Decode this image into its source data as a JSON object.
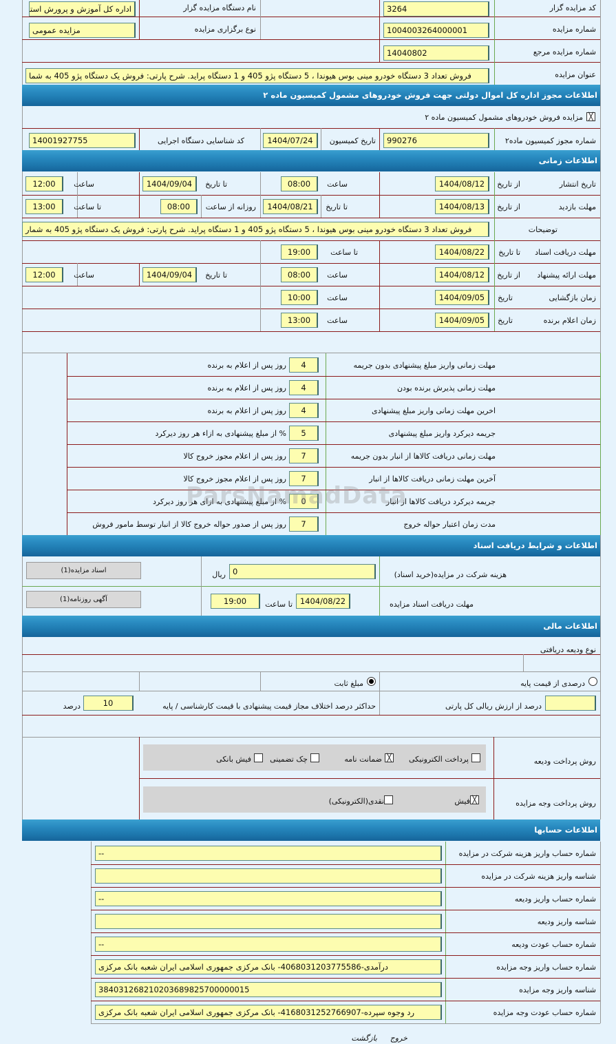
{
  "general": {
    "auctioneer_code_label": "کد مزایده گزار",
    "auctioneer_code": "3264",
    "auctioneer_name_label": "نام دستگاه مزایده گزار",
    "auctioneer_name": "اداره کل آموزش و پرورش استا",
    "auction_no_label": "شماره مزایده",
    "auction_no": "1004003264000001",
    "holding_type_label": "نوع برگزاری مزایده",
    "holding_type": "مزایده عمومی",
    "ref_no_label": "شماره مزایده مرجع",
    "ref_no": "14040802",
    "title_label": "عنوان مزایده",
    "title": "فروش تعداد 3 دستگاه خودرو مینی بوس هیوندا ، 5 دستگاه پژو 405 و 1 دستگاه پراید. شرح پارتی: فروش یک دستگاه پژو 405 به شما"
  },
  "license": {
    "header": "اطلاعات مجوز اداره کل اموال دولتی جهت فروش خودروهای مشمول کمیسیون ماده ۲",
    "checkbox_label": "مزایده فروش خودروهای مشمول کمیسیون ماده ۲",
    "checked": true,
    "permit_label": "شماره مجوز کمیسیون ماده۲",
    "permit": "990276",
    "commission_date_label": "تاریخ کمیسیون",
    "commission_date": "1404/07/24",
    "exec_code_label": "کد شناسایی دستگاه اجرایی",
    "exec_code": "14001927755"
  },
  "timing": {
    "header": "اطلاعات زمانی",
    "publish": {
      "label": "تاریخ انتشار",
      "from_label": "از تاریخ",
      "from": "1404/08/12",
      "time_label": "ساعت",
      "time": "08:00",
      "to_label": "تا تاریخ",
      "to": "1404/09/04",
      "time2_label": "ساعت",
      "time2": "12:00"
    },
    "visit": {
      "label": "مهلت بازدید",
      "from_label": "از تاریخ",
      "from": "1404/08/13",
      "to_label": "تا تاریخ",
      "to": "1404/08/21",
      "daily_label": "روزانه از ساعت",
      "daily_from": "08:00",
      "to_time_label": "تا ساعت",
      "to_time": "13:00"
    },
    "desc": {
      "label": "توضیحات",
      "value": "فروش تعداد 3 دستگاه خودرو مینی بوس هیوندا ، 5 دستگاه پژو 405 و 1 دستگاه پراید. شرح پارتی: فروش یک دستگاه پژو 405 به شمار"
    },
    "docs": {
      "label": "مهلت دریافت اسناد",
      "to_label": "تا تاریخ",
      "to": "1404/08/22",
      "time_label": "تا ساعت",
      "time": "19:00"
    },
    "offer": {
      "label": "مهلت ارائه پیشنهاد",
      "from_label": "از تاریخ",
      "from": "1404/08/12",
      "time_label": "ساعت",
      "time": "08:00",
      "to_label": "تا تاریخ",
      "to": "1404/09/04",
      "time2_label": "ساعت",
      "time2": "12:00"
    },
    "opening": {
      "label": "زمان بازگشایی",
      "date_label": "تاریخ",
      "date": "1404/09/05",
      "time_label": "ساعت",
      "time": "10:00"
    },
    "winner": {
      "label": "زمان اعلام برنده",
      "date_label": "تاریخ",
      "date": "1404/09/05",
      "time_label": "ساعت",
      "time": "13:00"
    }
  },
  "deadlines": [
    {
      "label": "مهلت زمانی واریز مبلغ پیشنهادی بدون جریمه",
      "value": "4",
      "unit": "روز پس از اعلام به برنده"
    },
    {
      "label": "مهلت زمانی پذیرش برنده بودن",
      "value": "4",
      "unit": "روز پس از اعلام به برنده"
    },
    {
      "label": "اخرین مهلت زمانی واریز مبلغ پیشنهادی",
      "value": "4",
      "unit": "روز پس از اعلام به برنده"
    },
    {
      "label": "جریمه دیرکرد واریز مبلغ پیشنهادی",
      "value": "5",
      "unit": "% از مبلغ پیشنهادی به ازاء هر روز دیرکرد"
    },
    {
      "label": "مهلت زمانی دریافت کالاها از انبار بدون جریمه",
      "value": "7",
      "unit": "روز پس از اعلام مجوز خروج کالا"
    },
    {
      "label": "آخرین مهلت زمانی دریافت کالاها از انبار",
      "value": "7",
      "unit": "روز پس از اعلام مجوز خروج کالا"
    },
    {
      "label": "جریمه دیرکرد دریافت کالاها از انبار",
      "value": "0",
      "unit": "% از مبلغ پیشنهادی به ازای هر روز دیرکرد"
    },
    {
      "label": "مدت زمان اعتبار حواله خروج",
      "value": "7",
      "unit": "روز پس از صدور حواله خروج کالا از انبار توسط مامور فروش"
    }
  ],
  "documents": {
    "header": "اطلاعات و شرایط دریافت اسناد",
    "fee_label": "هزینه شرکت در مزایده(خرید اسناد)",
    "fee": "0",
    "fee_unit": "ریال",
    "docs_button": "اسناد مزایده(1)",
    "deadline_label": "مهلت دریافت اسناد مزایده",
    "to_date_label": "تا تاریخ",
    "to_date": "1404/08/22",
    "to_time_label": "تا ساعت",
    "to_time": "19:00",
    "ad_button": "آگهی روزنامه(1)"
  },
  "financial": {
    "header": "اطلاعات مالی",
    "deposit_type_label": "نوع ودیعه دریافتی",
    "radio_percent": "درصدی از قیمت پایه",
    "radio_fixed": "مبلغ ثابت",
    "selected": "fixed",
    "percent_value": "",
    "percent_label": "درصد از ارزش ریالی کل پارتی",
    "max_diff_label": "حداکثر درصد اختلاف مجاز قیمت پیشنهادی با قیمت کارشناسی / پایه",
    "max_diff": "10",
    "max_diff_unit": "درصد"
  },
  "payment": {
    "deposit_label": "روش پرداخت ودیعه",
    "deposit_options": [
      {
        "label": "پرداخت الکترونیکی",
        "checked": false
      },
      {
        "label": "ضمانت نامه",
        "checked": true
      },
      {
        "label": "چک تضمینی",
        "checked": false
      },
      {
        "label": "فیش بانکی",
        "checked": false
      }
    ],
    "auction_label": "روش پرداخت وجه مزایده",
    "auction_options": [
      {
        "label": "فیش",
        "checked": true
      },
      {
        "label": "نقدی(الکترونیکی)",
        "checked": false
      }
    ]
  },
  "accounts": {
    "header": "اطلاعات حسابها",
    "rows": [
      {
        "label": "شماره حساب واریز هزینه شرکت در مزایده",
        "value": "--"
      },
      {
        "label": "شناسه واریز هزینه شرکت در مزایده",
        "value": ""
      },
      {
        "label": "شماره حساب واریز ودیعه",
        "value": "--"
      },
      {
        "label": "شناسه واریز ودیعه",
        "value": ""
      },
      {
        "label": "شماره حساب عودت ودیعه",
        "value": "--"
      },
      {
        "label": "شماره حساب واریز وجه مزایده",
        "value": "درآمدی-4068031203775586- بانک مرکزی جمهوری اسلامی ایران شعبه بانک مرکزی"
      },
      {
        "label": "شناسه واریز وجه مزایده",
        "value": "384031268210203689825700000015"
      },
      {
        "label": "شماره حساب عودت وجه مزایده",
        "value": "رد وجوه سپرده-4168031252766907- بانک مرکزی جمهوری اسلامی ایران شعبه بانک مرکزی"
      }
    ]
  },
  "footer": {
    "back": "بازگشت",
    "exit": "خروج"
  },
  "watermark": "ParsNamadData",
  "colors": {
    "header_blue": "#2a8cc2",
    "input_yellow": "#fdfdb0",
    "page_bg": "#e6f3fc",
    "row_border": "#8b1a1a"
  }
}
